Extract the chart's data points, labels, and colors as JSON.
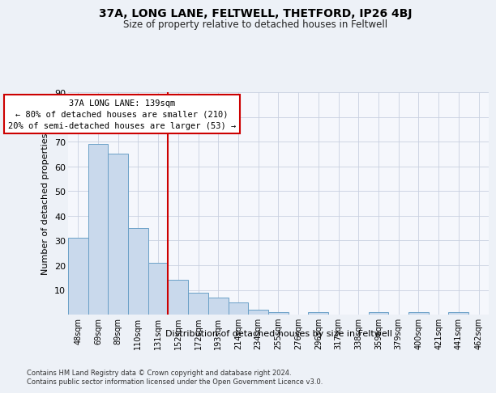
{
  "title1": "37A, LONG LANE, FELTWELL, THETFORD, IP26 4BJ",
  "title2": "Size of property relative to detached houses in Feltwell",
  "xlabel": "Distribution of detached houses by size in Feltwell",
  "ylabel": "Number of detached properties",
  "categories": [
    "48sqm",
    "69sqm",
    "89sqm",
    "110sqm",
    "131sqm",
    "152sqm",
    "172sqm",
    "193sqm",
    "214sqm",
    "234sqm",
    "255sqm",
    "276sqm",
    "296sqm",
    "317sqm",
    "338sqm",
    "359sqm",
    "379sqm",
    "400sqm",
    "421sqm",
    "441sqm",
    "462sqm"
  ],
  "values": [
    31,
    69,
    65,
    35,
    21,
    14,
    9,
    7,
    5,
    2,
    1,
    0,
    1,
    0,
    0,
    1,
    0,
    1,
    0,
    1,
    0
  ],
  "bar_color": "#c9d9ec",
  "bar_edge_color": "#6aa0c7",
  "vline_color": "#cc0000",
  "annotation_text": "37A LONG LANE: 139sqm\n← 80% of detached houses are smaller (210)\n20% of semi-detached houses are larger (53) →",
  "annotation_box_color": "#cc0000",
  "ylim": [
    0,
    90
  ],
  "yticks": [
    0,
    10,
    20,
    30,
    40,
    50,
    60,
    70,
    80,
    90
  ],
  "footnote": "Contains HM Land Registry data © Crown copyright and database right 2024.\nContains public sector information licensed under the Open Government Licence v3.0.",
  "bg_color": "#edf1f7",
  "plot_bg_color": "#f5f7fc",
  "grid_color": "#c8d0e0"
}
